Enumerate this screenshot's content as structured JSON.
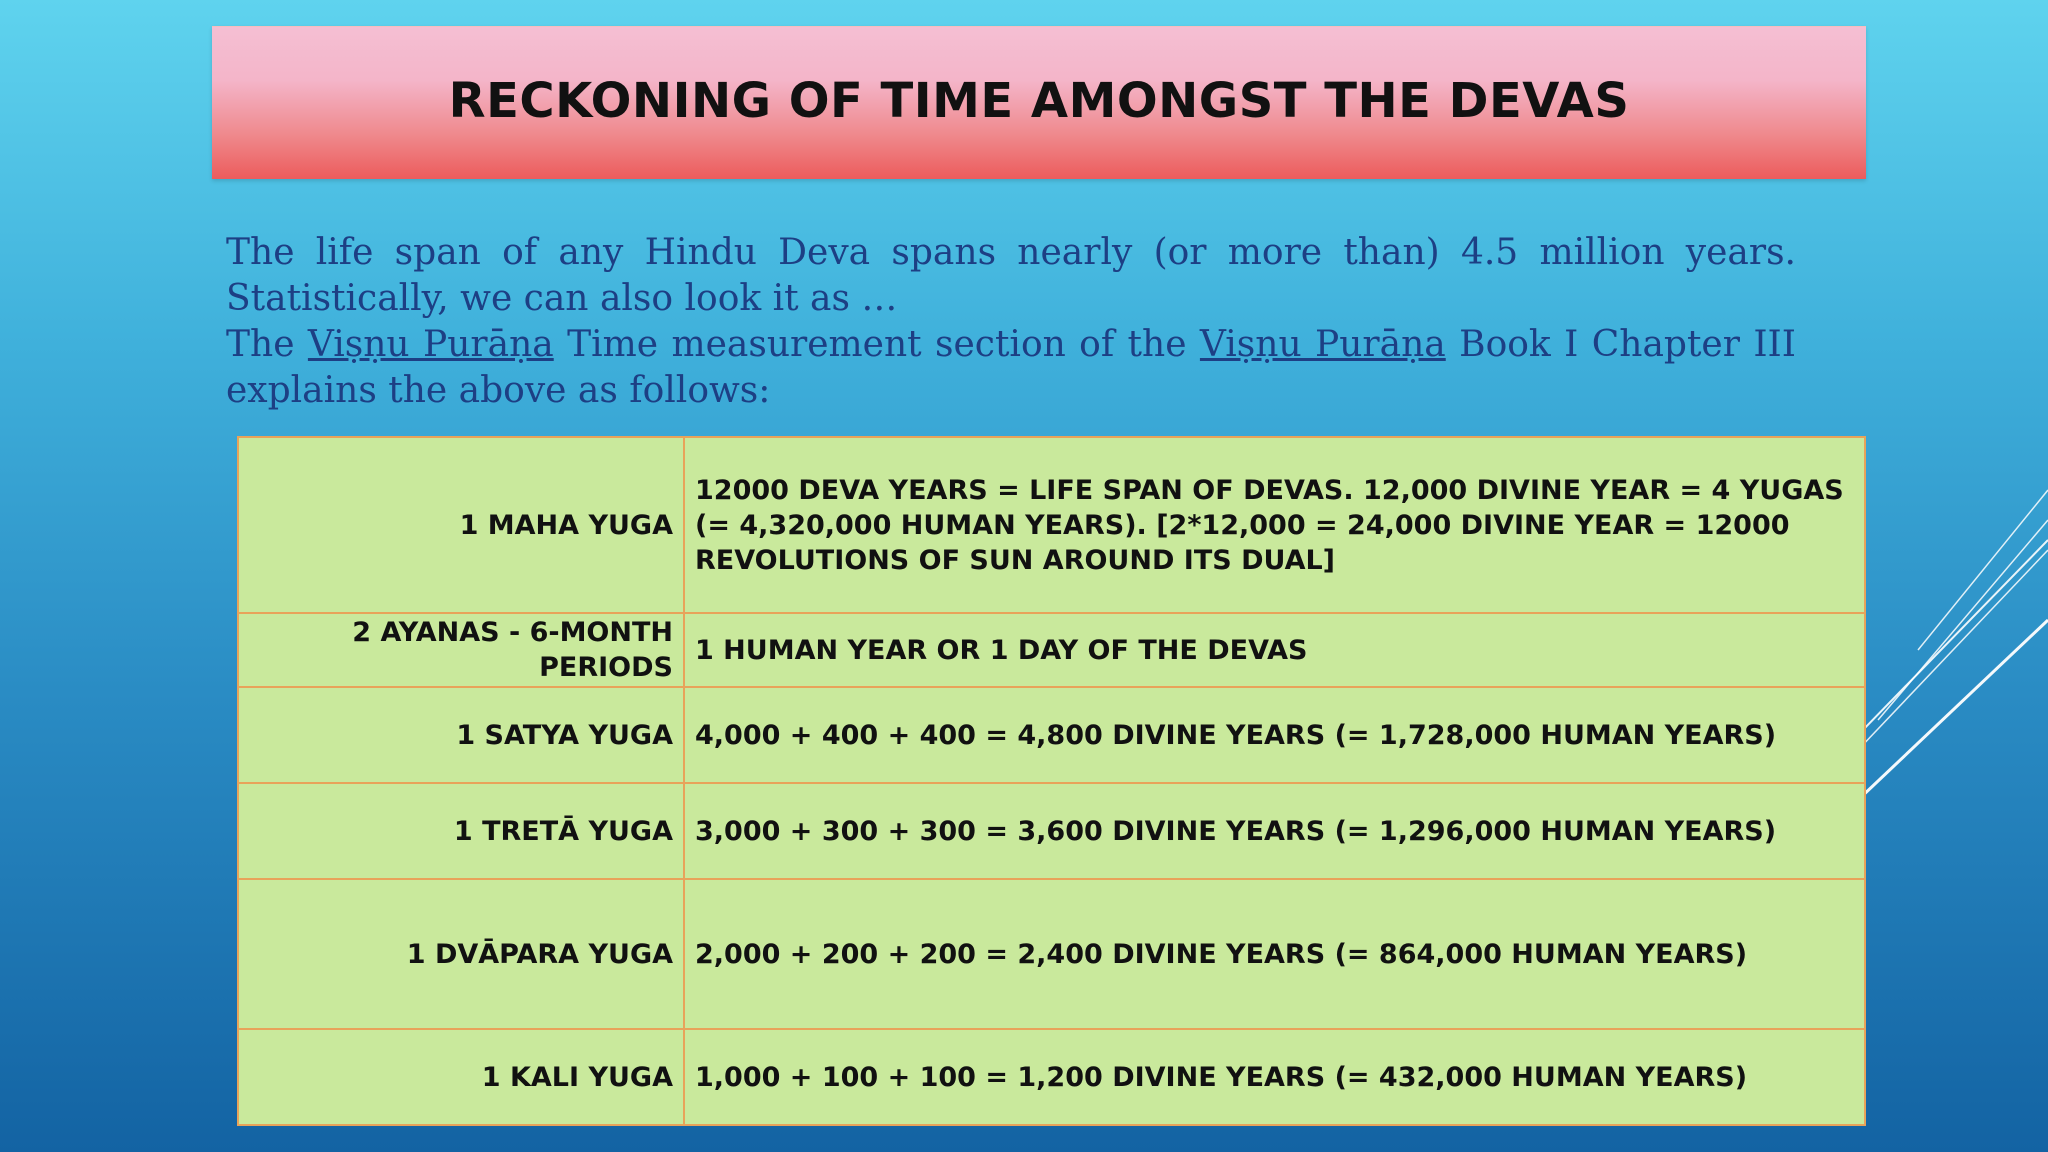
{
  "title": "RECKONING OF TIME AMONGST THE DEVAS",
  "intro": {
    "line1": "The life span of any Hindu Deva spans nearly (or more than) 4.5 million years. Statistically, we can also look it as …",
    "line2_part1": "The ",
    "line2_link1": "Viṣṇu Purāṇa",
    "line2_part2": " Time measurement section of the ",
    "line2_link2": "Viṣṇu Purāṇa",
    "line2_part3": " Book I Chapter III explains the above as follows:"
  },
  "table": {
    "rows": [
      {
        "term": "1 MAHA YUGA",
        "desc": "12000 DEVA YEARS = LIFE SPAN OF DEVAS. 12,000 DIVINE YEAR = 4 YUGAS (= 4,320,000 HUMAN YEARS). [2*12,000 = 24,000 DIVINE YEAR = 12000 REVOLUTIONS OF SUN AROUND ITS DUAL]"
      },
      {
        "term": "2 AYANAS  - 6-MONTH PERIODS",
        "desc": "1 HUMAN YEAR OR 1 DAY OF THE DEVAS"
      },
      {
        "term": "1 SATYA YUGA",
        "desc": "4,000 + 400 + 400 = 4,800 DIVINE YEARS (= 1,728,000 HUMAN YEARS)"
      },
      {
        "term": "1 TRETĀ YUGA",
        "desc": "3,000 + 300 + 300 = 3,600 DIVINE YEARS (= 1,296,000 HUMAN YEARS)"
      },
      {
        "term": "1 DVĀPARA YUGA",
        "desc": "2,000 + 200 + 200 = 2,400 DIVINE YEARS (= 864,000 HUMAN YEARS)"
      },
      {
        "term": "1 KALI YUGA",
        "desc": "1,000 + 100 + 100 = 1,200 DIVINE YEARS (= 432,000 HUMAN YEARS)"
      }
    ]
  },
  "colors": {
    "title_banner_top": "#f5bfd3",
    "title_banner_bottom": "#ec5c5c",
    "intro_text": "#1d3f84",
    "table_fill": "#c9e99c",
    "table_border": "#e8a35a"
  }
}
